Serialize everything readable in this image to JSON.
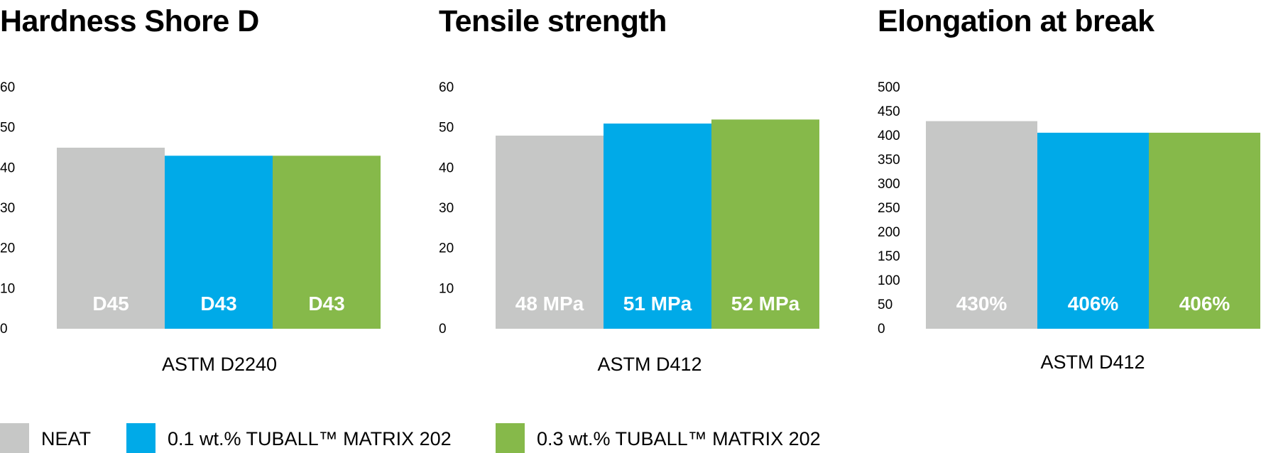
{
  "colors": {
    "neat": "#c6c7c6",
    "tuball_01": "#00aae8",
    "tuball_03": "#86b94a"
  },
  "legend": [
    {
      "label": "NEAT",
      "color": "#c6c7c6"
    },
    {
      "label": "0.1 wt.% TUBALL™ MATRIX 202",
      "color": "#00aae8"
    },
    {
      "label": "0.3 wt.% TUBALL™ MATRIX 202",
      "color": "#86b94a"
    }
  ],
  "chart_data": [
    {
      "type": "bar",
      "title": "Hardness Shore D",
      "xlabel": "ASTM D2240",
      "ylabel": "",
      "ylim": [
        0,
        60
      ],
      "yticks": [
        0,
        10,
        20,
        30,
        40,
        50,
        60
      ],
      "categories": [
        "NEAT",
        "0.1 wt.% TUBALL™ MATRIX 202",
        "0.3 wt.% TUBALL™ MATRIX 202"
      ],
      "values": [
        45,
        43,
        43
      ],
      "labels": [
        "D45",
        "D43",
        "D43"
      ],
      "grid": false
    },
    {
      "type": "bar",
      "title": "Tensile strength",
      "xlabel": "ASTM D412",
      "ylabel": "",
      "ylim": [
        0,
        60
      ],
      "yticks": [
        0,
        10,
        20,
        30,
        40,
        50,
        60
      ],
      "categories": [
        "NEAT",
        "0.1 wt.% TUBALL™ MATRIX 202",
        "0.3 wt.% TUBALL™ MATRIX 202"
      ],
      "values": [
        48,
        51,
        52
      ],
      "labels": [
        "48 MPa",
        "51 MPa",
        "52 MPa"
      ],
      "grid": false
    },
    {
      "type": "bar",
      "title": "Elongation at break",
      "xlabel": "ASTM D412",
      "ylabel": "",
      "ylim": [
        0,
        500
      ],
      "yticks": [
        0,
        50,
        100,
        150,
        200,
        250,
        300,
        350,
        400,
        450,
        500
      ],
      "categories": [
        "NEAT",
        "0.1 wt.% TUBALL™ MATRIX 202",
        "0.3 wt.% TUBALL™ MATRIX 202"
      ],
      "values": [
        430,
        406,
        406
      ],
      "labels": [
        "430%",
        "406%",
        "406%"
      ],
      "grid": false
    }
  ]
}
